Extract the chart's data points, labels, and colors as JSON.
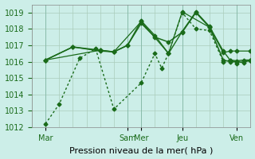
{
  "background_color": "#cceee8",
  "grid_color": "#aaccbb",
  "line_color": "#1a6b1a",
  "xlim": [
    0,
    96
  ],
  "ylim": [
    1012,
    1019.5
  ],
  "yticks": [
    1012,
    1013,
    1014,
    1015,
    1016,
    1017,
    1018,
    1019
  ],
  "day_vlines_x": [
    6,
    42,
    48,
    66,
    90
  ],
  "xtick_labels": [
    "Mar",
    "Sam",
    "Mer",
    "Jeu",
    "Ven"
  ],
  "xtick_positions": [
    6,
    42,
    48,
    66,
    90
  ],
  "xlabel": "Pression niveau de la mer( hPa )",
  "xlabel_fontsize": 8,
  "ytick_fontsize": 7,
  "xtick_fontsize": 7,
  "series": [
    {
      "x": [
        6,
        12,
        21,
        28,
        36,
        48,
        54,
        57,
        60,
        66,
        72,
        78,
        84,
        87,
        90,
        96
      ],
      "y": [
        1012.2,
        1013.4,
        1016.2,
        1016.8,
        1013.1,
        1014.7,
        1016.5,
        1015.6,
        1016.5,
        1019.0,
        1018.0,
        1017.9,
        1016.0,
        1016.1,
        1015.9,
        1016.1
      ],
      "style": "dotted",
      "marker": "D",
      "markersize": 2.5,
      "lw": 1.0
    },
    {
      "x": [
        6,
        18,
        30,
        36,
        42,
        48,
        54,
        60,
        66,
        72,
        78,
        84,
        87,
        90,
        93,
        96
      ],
      "y": [
        1016.1,
        1016.9,
        1016.7,
        1016.6,
        1017.0,
        1018.35,
        1017.5,
        1017.2,
        1017.8,
        1019.0,
        1018.1,
        1016.1,
        1016.0,
        1016.0,
        1015.95,
        1016.1
      ],
      "style": "solid",
      "marker": "D",
      "markersize": 2.5,
      "lw": 1.1
    },
    {
      "x": [
        6,
        18,
        30,
        36,
        42,
        48,
        54,
        60,
        66,
        72,
        78,
        84,
        87,
        90,
        93,
        96
      ],
      "y": [
        1016.1,
        1016.9,
        1016.65,
        1016.6,
        1017.0,
        1018.5,
        1017.6,
        1016.5,
        1017.85,
        1019.05,
        1018.15,
        1016.65,
        1016.1,
        1016.05,
        1016.1,
        1016.1
      ],
      "style": "solid",
      "marker": "D",
      "markersize": 2.5,
      "lw": 1.0
    },
    {
      "x": [
        6,
        30,
        36,
        48,
        60,
        66,
        78,
        84,
        87,
        90,
        96
      ],
      "y": [
        1016.1,
        1016.7,
        1016.6,
        1018.45,
        1016.5,
        1019.05,
        1018.1,
        1016.55,
        1016.65,
        1016.65,
        1016.65
      ],
      "style": "solid",
      "marker": "D",
      "markersize": 2.5,
      "lw": 0.9
    }
  ]
}
